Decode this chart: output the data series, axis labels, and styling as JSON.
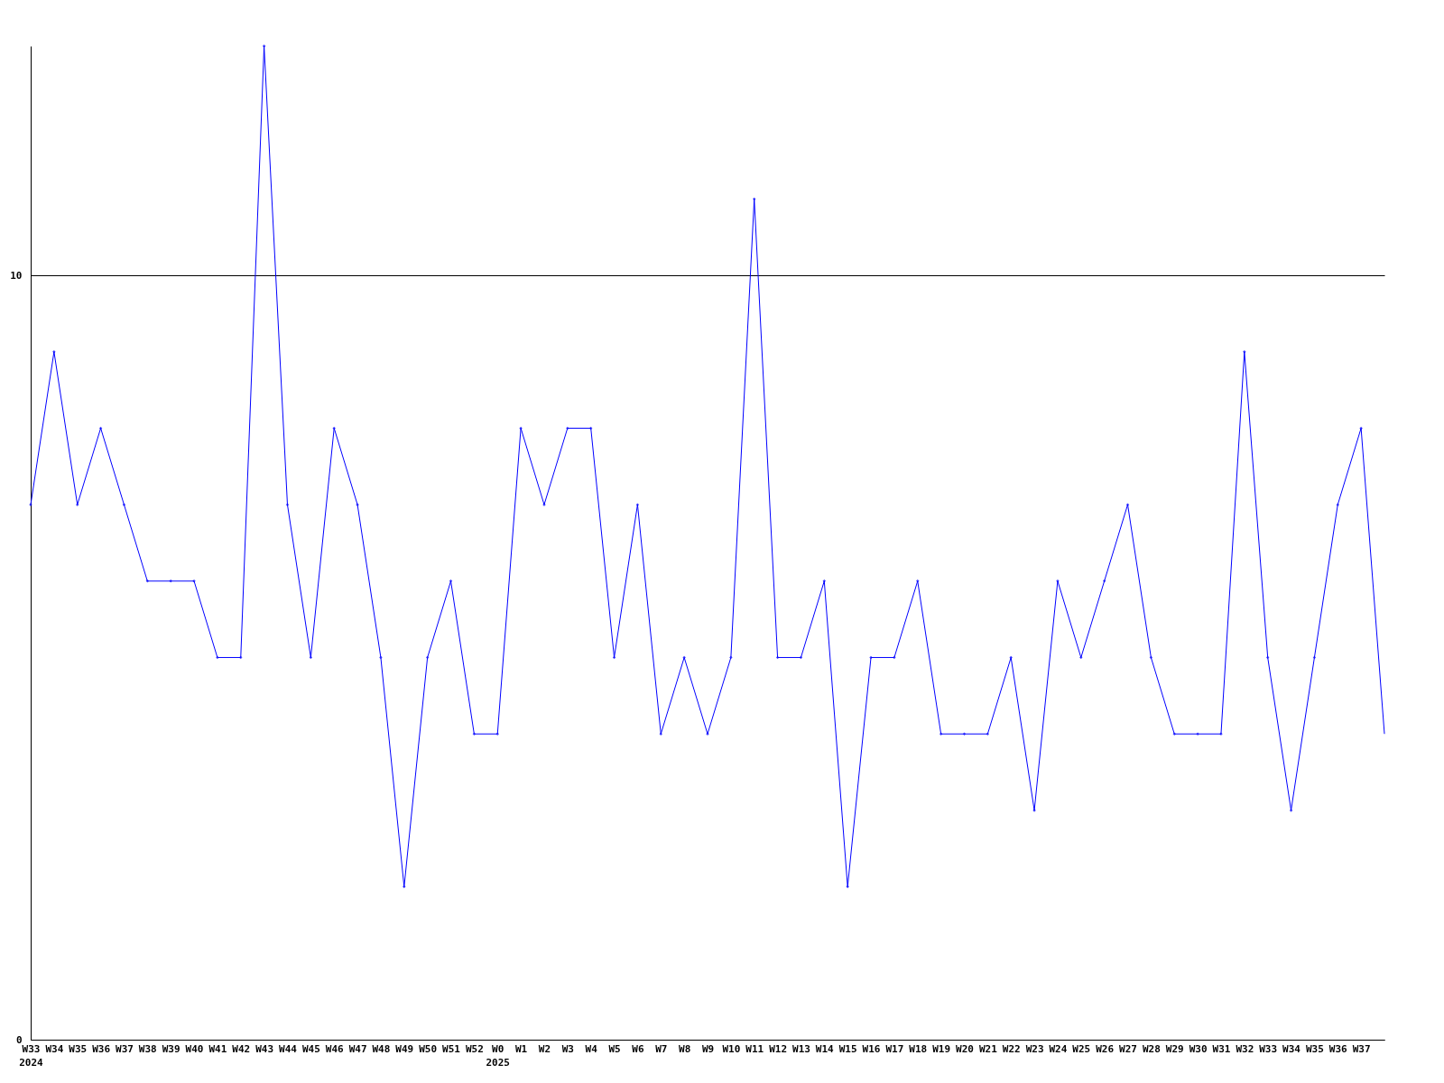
{
  "chart_data": {
    "type": "line",
    "categories": [
      "W33\n2024",
      "W34",
      "W35",
      "W36",
      "W37",
      "W38",
      "W39",
      "W40",
      "W41",
      "W42",
      "W43",
      "W44",
      "W45",
      "W46",
      "W47",
      "W48",
      "W49",
      "W50",
      "W51",
      "W52",
      "W0\n2025",
      "W1",
      "W2",
      "W3",
      "W4",
      "W5",
      "W6",
      "W7",
      "W8",
      "W9",
      "W10",
      "W11",
      "W12",
      "W13",
      "W14",
      "W15",
      "W16",
      "W17",
      "W18",
      "W19",
      "W20",
      "W21",
      "W22",
      "W23",
      "W24",
      "W25",
      "W26",
      "W27",
      "W28",
      "W29",
      "W30",
      "W31",
      "W32",
      "W33",
      "W34",
      "W35",
      "W36",
      "W37",
      null
    ],
    "series": [
      {
        "color": "#0000ff",
        "values": [
          7,
          9,
          7,
          8,
          7,
          6,
          6,
          6,
          5,
          5,
          13,
          7,
          5,
          8,
          7,
          5,
          2,
          5,
          6,
          4,
          4,
          8,
          7,
          8,
          8,
          5,
          7,
          4,
          5,
          4,
          5,
          11,
          5,
          5,
          6,
          2,
          5,
          5,
          6,
          4,
          4,
          4,
          5,
          3,
          6,
          5,
          6,
          7,
          5,
          4,
          4,
          4,
          9,
          5,
          3,
          5,
          7,
          8,
          4
        ]
      }
    ],
    "ylim": [
      0,
      13
    ],
    "yticks": [
      0,
      10
    ],
    "grid": "y",
    "marker": "diamond"
  }
}
